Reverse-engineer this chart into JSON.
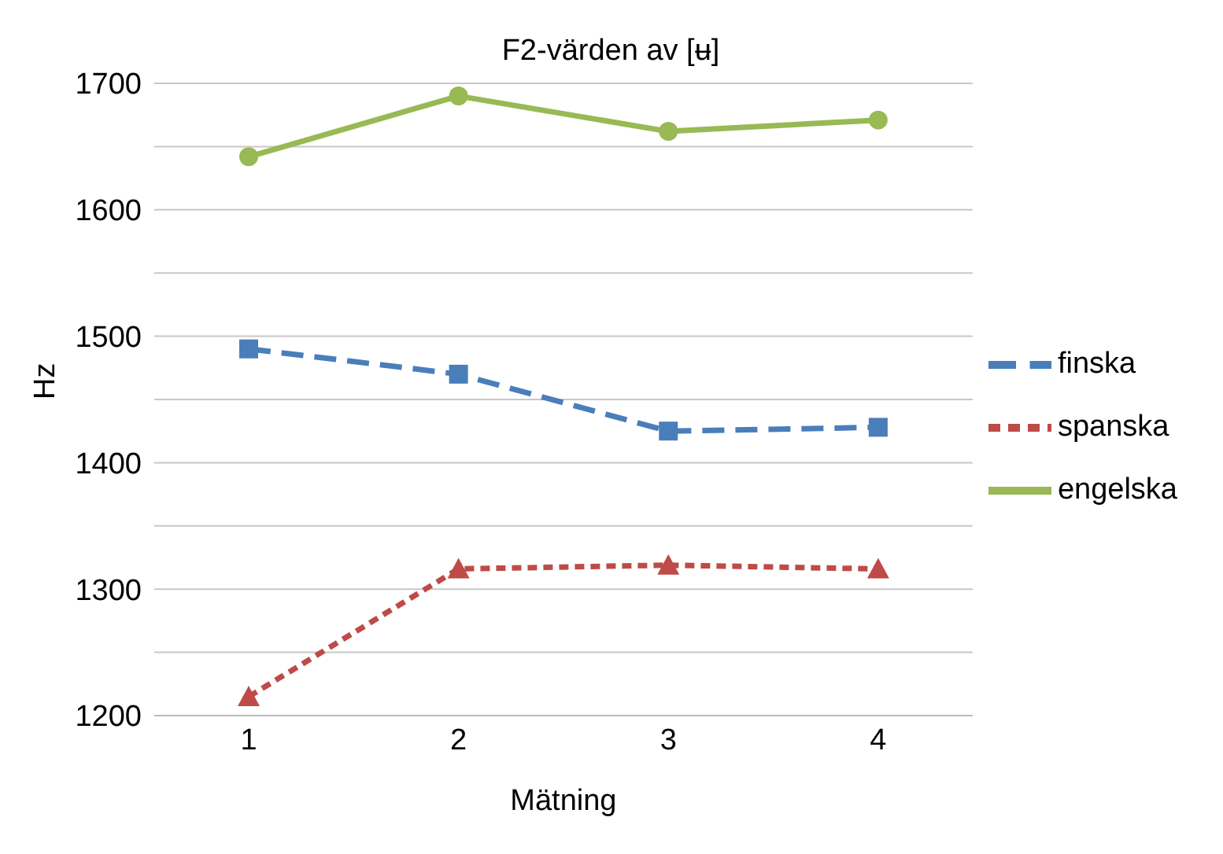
{
  "chart_data": {
    "type": "line",
    "title": "F2-värden av [ʉ]",
    "xlabel": "Mätning",
    "ylabel": "Hz",
    "categories": [
      "1",
      "2",
      "3",
      "4"
    ],
    "series": [
      {
        "name": "finska",
        "color": "#4a7ebb",
        "values": [
          1490,
          1470,
          1425,
          1428
        ],
        "marker": "square",
        "line_style": "dashed"
      },
      {
        "name": "spanska",
        "color": "#be4b48",
        "values": [
          1215,
          1316,
          1319,
          1316
        ],
        "marker": "triangle",
        "line_style": "dotted"
      },
      {
        "name": "engelska",
        "color": "#98b954",
        "values": [
          1642,
          1690,
          1662,
          1671
        ],
        "marker": "circle",
        "line_style": "solid"
      }
    ],
    "ylim": [
      1200,
      1700
    ],
    "yticks": [
      1200,
      {
        "value": 1250,
        "label": null
      },
      1300,
      {
        "value": 1350,
        "label": null
      },
      1400,
      {
        "value": 1450,
        "label": null
      },
      1500,
      {
        "value": 1550,
        "label": null
      },
      1600,
      {
        "value": 1650,
        "label": null
      },
      1700
    ],
    "grid": "y",
    "legend": "right"
  }
}
